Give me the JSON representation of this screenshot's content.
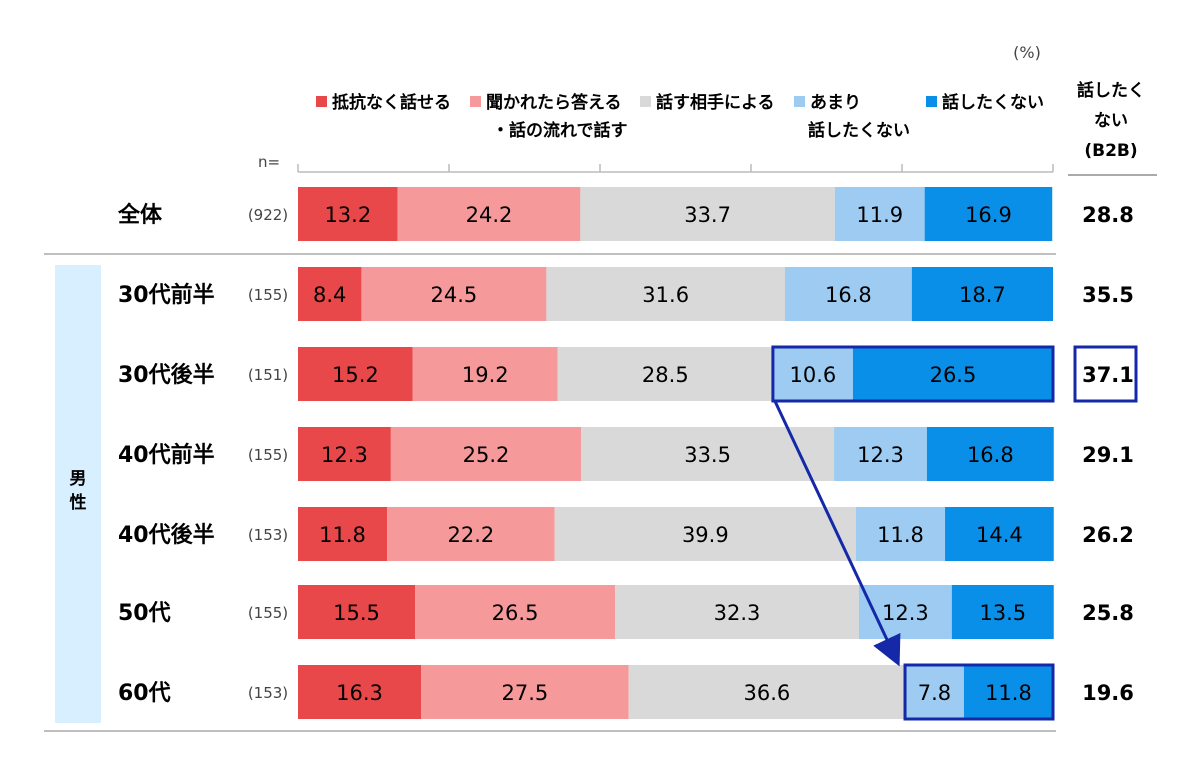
{
  "chart_data": {
    "type": "bar",
    "orientation": "horizontal",
    "stacked": true,
    "unit_label": "(%)",
    "n_header": "n=",
    "b2b_header": [
      "話したく",
      "ない",
      "(B2B)"
    ],
    "group_label": "男\n性",
    "legend": [
      {
        "lines": [
          "抵抗なく話せる"
        ],
        "color": "#e8484a"
      },
      {
        "lines": [
          "聞かれたら答える",
          "・話の流れで話す"
        ],
        "color": "#f5999a"
      },
      {
        "lines": [
          "話す相手による"
        ],
        "color": "#d9d9d9"
      },
      {
        "lines": [
          "あまり",
          "話したくない"
        ],
        "color": "#9dcbf2"
      },
      {
        "lines": [
          "話したくない"
        ],
        "color": "#0a8fe8"
      }
    ],
    "series": [
      {
        "name": "抵抗なく話せる",
        "color": "#e8484a",
        "values": [
          13.2,
          8.4,
          15.2,
          12.3,
          11.8,
          15.5,
          16.3
        ],
        "labels": [
          "13.2",
          "8.4",
          "15.2",
          "12.3",
          "11.8",
          "15.5",
          "16.3"
        ]
      },
      {
        "name": "聞かれたら答える・話の流れで話す",
        "color": "#f5999a",
        "values": [
          24.2,
          24.5,
          19.2,
          25.2,
          22.2,
          26.5,
          27.5
        ],
        "labels": [
          "24.2",
          "24.5",
          "19.2",
          "25.2",
          "22.2",
          "26.5",
          "27.5"
        ]
      },
      {
        "name": "話す相手による",
        "color": "#d9d9d9",
        "values": [
          33.7,
          31.6,
          28.5,
          33.5,
          39.9,
          32.3,
          36.6
        ],
        "labels": [
          "33.7",
          "31.6",
          "28.5",
          "33.5",
          "39.9",
          "32.3",
          "36.6"
        ]
      },
      {
        "name": "あまり話したくない",
        "color": "#9dcbf2",
        "values": [
          11.9,
          16.8,
          10.6,
          12.3,
          11.8,
          12.3,
          7.8
        ],
        "labels": [
          "11.9",
          "16.8",
          "10.6",
          "12.3",
          "11.8",
          "12.3",
          "7.8"
        ]
      },
      {
        "name": "話したくない",
        "color": "#0a8fe8",
        "values": [
          16.9,
          18.7,
          26.5,
          16.8,
          14.4,
          13.5,
          11.8
        ],
        "labels": [
          "16.9",
          "18.7",
          "26.5",
          "16.8",
          "14.4",
          "13.5",
          "11.8"
        ]
      }
    ],
    "categories": [
      "全体",
      "30代前半",
      "30代後半",
      "40代前半",
      "40代後半",
      "50代",
      "60代"
    ],
    "n_values": [
      "(922)",
      "(155)",
      "(151)",
      "(155)",
      "(153)",
      "(155)",
      "(153)"
    ],
    "b2b_values": [
      "28.8",
      "35.5",
      "37.1",
      "29.1",
      "26.2",
      "25.8",
      "19.6"
    ],
    "xlim": [
      0,
      100
    ],
    "highlight": {
      "color": "#1428a8",
      "rows": [
        "30代後半",
        "60代"
      ],
      "series": [
        "あまり話したくない",
        "話したくない"
      ],
      "b2b_row": "30代後半",
      "arrow": {
        "from": "30代後半",
        "to": "60代"
      }
    }
  }
}
